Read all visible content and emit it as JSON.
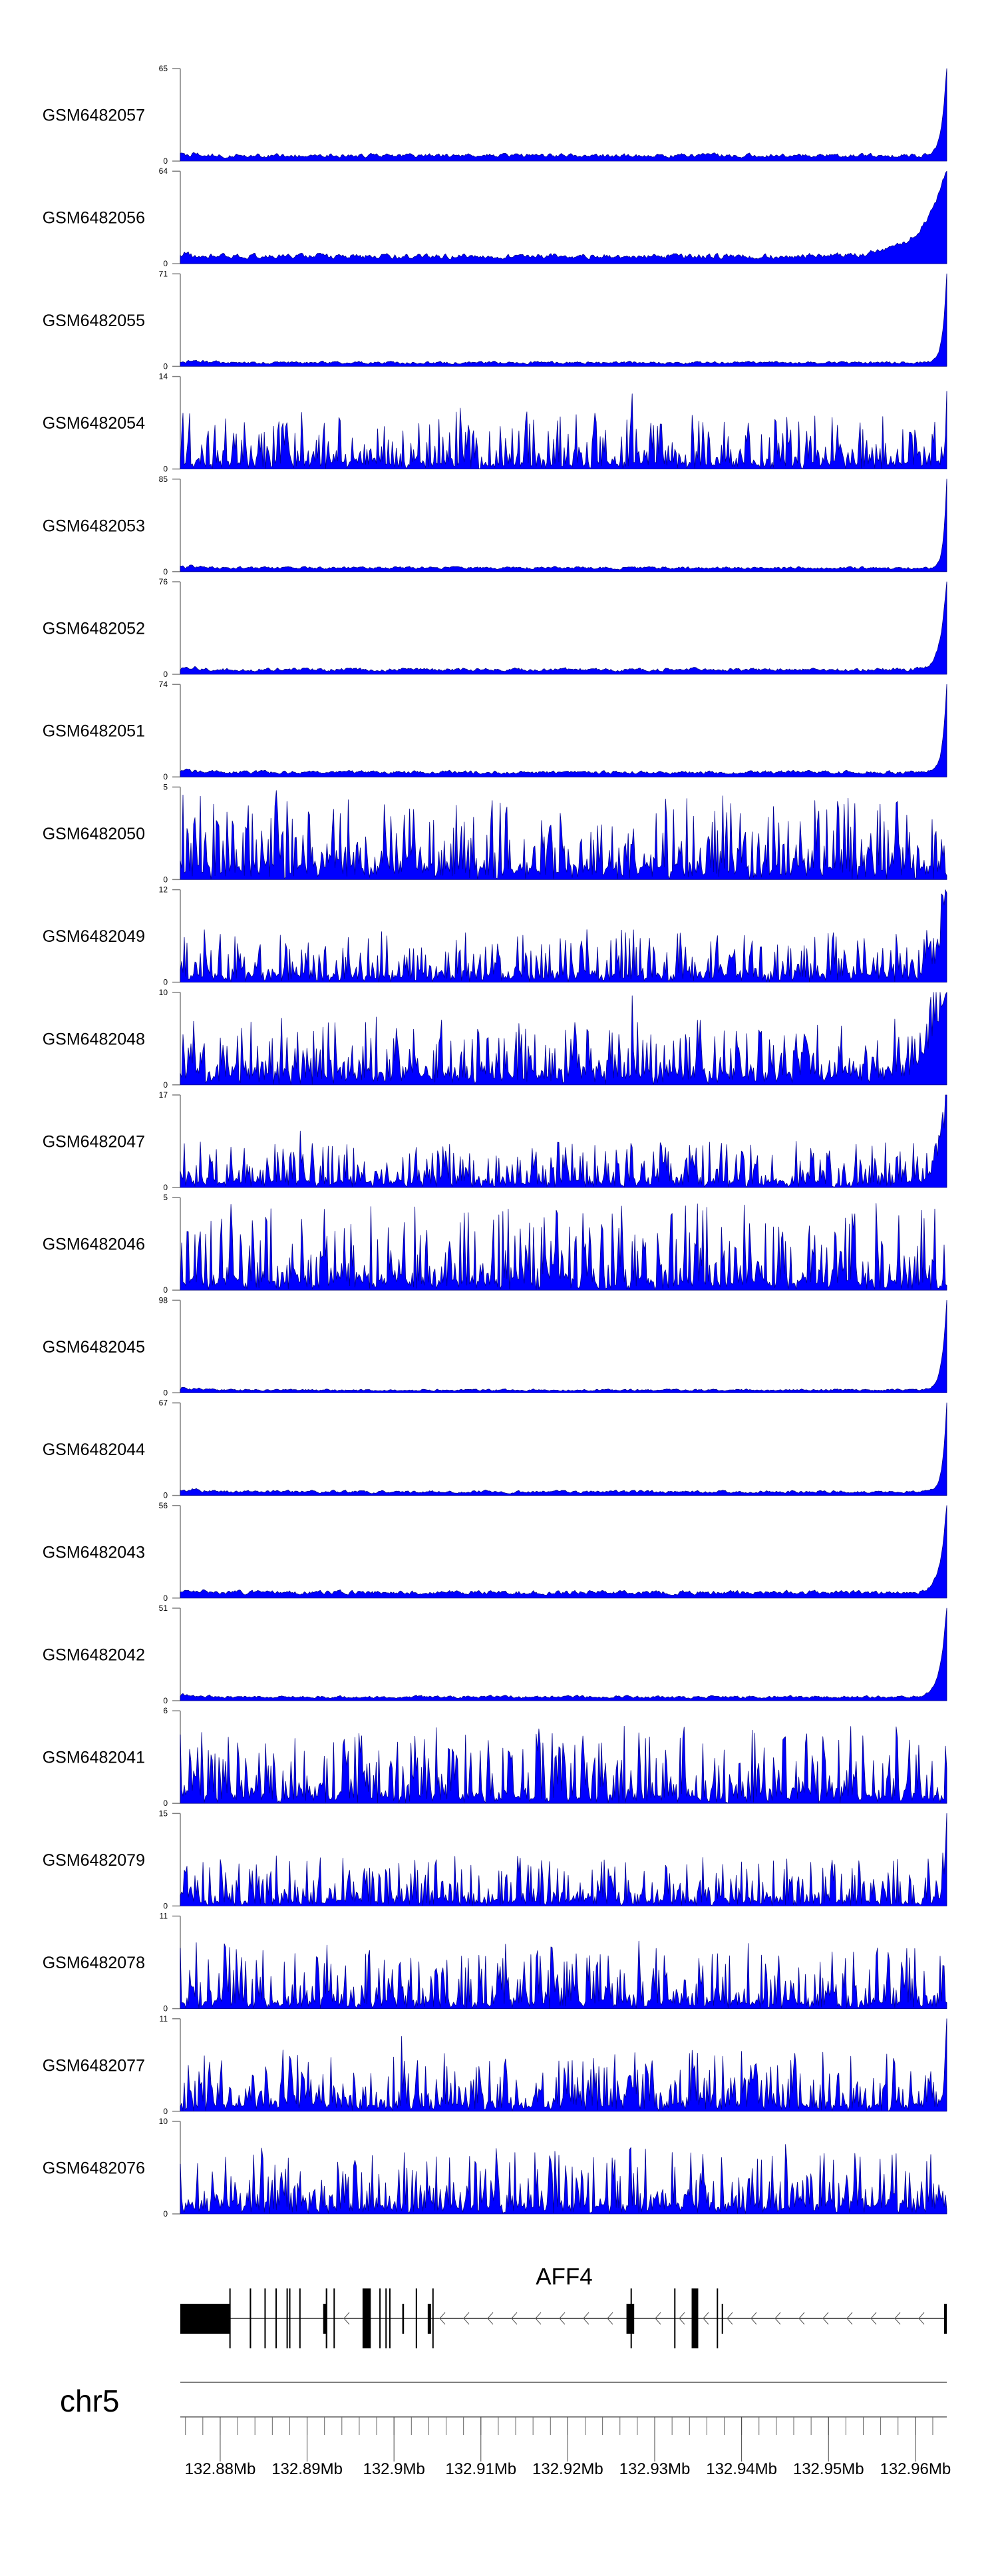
{
  "chart_data": {
    "type": "area",
    "title": "",
    "xlabel": "",
    "ylabel": "",
    "x_range_mb": [
      132.87541,
      132.96361
    ],
    "grid": false,
    "colors": {
      "fill": "#0000ff",
      "outline": "#00008b",
      "axis": "#808080",
      "gene": "#000000"
    },
    "tracks": [
      {
        "name": "GSM6482057",
        "ymax": 65,
        "kind": "peak",
        "base": 0.06,
        "end": 1.0,
        "endWidth": 0.006,
        "seed": 57
      },
      {
        "name": "GSM6482056",
        "ymax": 64,
        "kind": "peak",
        "base": 0.08,
        "end": 0.95,
        "endWidth": 0.03,
        "seed": 56
      },
      {
        "name": "GSM6482055",
        "ymax": 71,
        "kind": "peak",
        "base": 0.04,
        "end": 1.0,
        "endWidth": 0.005,
        "seed": 55
      },
      {
        "name": "GSM6482054",
        "ymax": 14,
        "kind": "noisy",
        "base": 0.08,
        "amp": 0.55,
        "end": 0.5,
        "endWidth": 0.003,
        "seed": 54
      },
      {
        "name": "GSM6482053",
        "ymax": 85,
        "kind": "peak",
        "base": 0.04,
        "end": 1.0,
        "endWidth": 0.004,
        "seed": 53
      },
      {
        "name": "GSM6482052",
        "ymax": 76,
        "kind": "peak",
        "base": 0.05,
        "end": 1.0,
        "endWidth": 0.008,
        "seed": 52
      },
      {
        "name": "GSM6482051",
        "ymax": 74,
        "kind": "peak",
        "base": 0.05,
        "end": 1.0,
        "endWidth": 0.005,
        "seed": 51
      },
      {
        "name": "GSM6482050",
        "ymax": 5,
        "kind": "noisy",
        "base": 0.15,
        "amp": 0.8,
        "end": 0.0,
        "endWidth": 0.003,
        "seed": 50
      },
      {
        "name": "GSM6482049",
        "ymax": 12,
        "kind": "noisy",
        "base": 0.1,
        "amp": 0.5,
        "end": 0.9,
        "endWidth": 0.01,
        "seed": 49
      },
      {
        "name": "GSM6482048",
        "ymax": 10,
        "kind": "noisy",
        "base": 0.15,
        "amp": 0.6,
        "end": 1.0,
        "endWidth": 0.02,
        "seed": 48
      },
      {
        "name": "GSM6482047",
        "ymax": 17,
        "kind": "noisy",
        "base": 0.08,
        "amp": 0.45,
        "end": 0.9,
        "endWidth": 0.01,
        "seed": 47
      },
      {
        "name": "GSM6482046",
        "ymax": 5,
        "kind": "noisy",
        "base": 0.12,
        "amp": 0.85,
        "end": 0.0,
        "endWidth": 0.003,
        "seed": 46
      },
      {
        "name": "GSM6482045",
        "ymax": 98,
        "kind": "peak",
        "base": 0.03,
        "end": 1.0,
        "endWidth": 0.006,
        "seed": 45
      },
      {
        "name": "GSM6482044",
        "ymax": 67,
        "kind": "peak",
        "base": 0.04,
        "end": 1.0,
        "endWidth": 0.005,
        "seed": 44
      },
      {
        "name": "GSM6482043",
        "ymax": 56,
        "kind": "peak",
        "base": 0.06,
        "end": 1.0,
        "endWidth": 0.008,
        "seed": 43
      },
      {
        "name": "GSM6482042",
        "ymax": 51,
        "kind": "peak",
        "base": 0.04,
        "end": 1.0,
        "endWidth": 0.008,
        "seed": 42
      },
      {
        "name": "GSM6482041",
        "ymax": 6,
        "kind": "noisy",
        "base": 0.1,
        "amp": 0.75,
        "end": 0.0,
        "endWidth": 0.003,
        "seed": 41
      },
      {
        "name": "GSM6482079",
        "ymax": 15,
        "kind": "noisy",
        "base": 0.06,
        "amp": 0.5,
        "end": 0.95,
        "endWidth": 0.003,
        "seed": 79
      },
      {
        "name": "GSM6482078",
        "ymax": 11,
        "kind": "noisy",
        "base": 0.08,
        "amp": 0.65,
        "end": 0.0,
        "endWidth": 0.003,
        "seed": 78
      },
      {
        "name": "GSM6482077",
        "ymax": 11,
        "kind": "noisy",
        "base": 0.08,
        "amp": 0.6,
        "end": 0.9,
        "endWidth": 0.003,
        "seed": 77
      },
      {
        "name": "GSM6482076",
        "ymax": 10,
        "kind": "noisy",
        "base": 0.1,
        "amp": 0.65,
        "end": 0.0,
        "endWidth": 0.003,
        "seed": 76
      }
    ],
    "gene": {
      "name": "AFF4",
      "strand": "-",
      "start": 132.87541,
      "end": 132.96361,
      "exons": [
        {
          "start": 132.87541,
          "end": 132.88113,
          "type": "short"
        },
        {
          "start": 132.88105,
          "end": 132.88113,
          "type": "tall"
        },
        {
          "start": 132.8834,
          "end": 132.88356,
          "type": "tall"
        },
        {
          "start": 132.88509,
          "end": 132.88515,
          "type": "tall"
        },
        {
          "start": 132.88636,
          "end": 132.88642,
          "type": "tall"
        },
        {
          "start": 132.88763,
          "end": 132.88769,
          "type": "tall"
        },
        {
          "start": 132.88793,
          "end": 132.88805,
          "type": "tall"
        },
        {
          "start": 132.8891,
          "end": 132.88916,
          "type": "tall"
        },
        {
          "start": 132.89185,
          "end": 132.89233,
          "type": "short"
        },
        {
          "start": 132.89215,
          "end": 132.89233,
          "type": "tall"
        },
        {
          "start": 132.89304,
          "end": 132.8931,
          "type": "tall"
        },
        {
          "start": 132.89638,
          "end": 132.89733,
          "type": "tall"
        },
        {
          "start": 132.89831,
          "end": 132.89837,
          "type": "tall"
        },
        {
          "start": 132.89901,
          "end": 132.89907,
          "type": "tall"
        },
        {
          "start": 132.89945,
          "end": 132.89951,
          "type": "tall"
        },
        {
          "start": 132.90095,
          "end": 132.90115,
          "type": "short"
        },
        {
          "start": 132.9025,
          "end": 132.90256,
          "type": "tall"
        },
        {
          "start": 132.90388,
          "end": 132.90426,
          "type": "short"
        },
        {
          "start": 132.90441,
          "end": 132.90447,
          "type": "tall"
        },
        {
          "start": 132.92675,
          "end": 132.92764,
          "type": "short"
        },
        {
          "start": 132.92722,
          "end": 132.92728,
          "type": "tall"
        },
        {
          "start": 132.93224,
          "end": 132.9323,
          "type": "tall"
        },
        {
          "start": 132.93425,
          "end": 132.93501,
          "type": "tall"
        },
        {
          "start": 132.93714,
          "end": 132.9372,
          "type": "tall"
        },
        {
          "start": 132.93771,
          "end": 132.93777,
          "type": "short"
        },
        {
          "start": 132.9633,
          "end": 132.96361,
          "type": "short"
        }
      ]
    },
    "axis": {
      "chromosome": "chr5",
      "minor_step_mb": 0.002,
      "major_ticks": [
        "132.88Mb",
        "132.89Mb",
        "132.9Mb",
        "132.91Mb",
        "132.92Mb",
        "132.93Mb",
        "132.94Mb",
        "132.95Mb",
        "132.96Mb"
      ],
      "major_values": [
        132.88,
        132.89,
        132.9,
        132.91,
        132.92,
        132.93,
        132.94,
        132.95,
        132.96
      ]
    }
  }
}
